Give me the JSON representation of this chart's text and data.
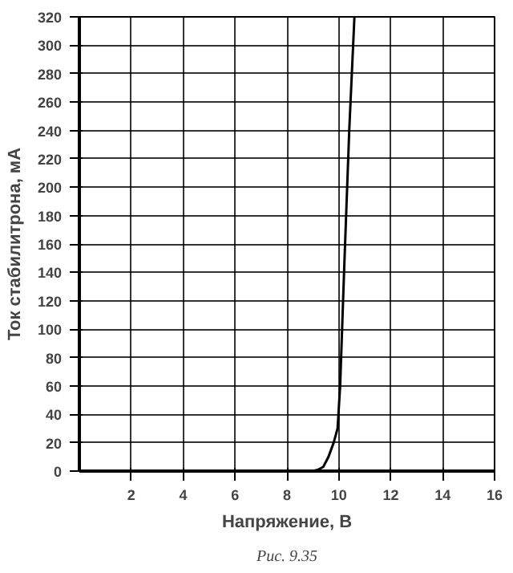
{
  "chart_data": {
    "type": "line",
    "xlabel": "Напряжение, В",
    "ylabel": "Ток стабилитрона, мА",
    "annotations": [
      "Рис. 9.35"
    ],
    "series": [
      {
        "color": "#000000",
        "x": [
          2,
          9.0,
          9.2,
          9.4,
          9.6,
          9.8,
          9.95,
          10.05,
          10.2,
          10.4,
          10.6
        ],
        "values": [
          0,
          0,
          1,
          3,
          10,
          20,
          30,
          60,
          140,
          240,
          320
        ]
      }
    ],
    "xlim": [
      0,
      16
    ],
    "xticks": [
      2,
      4,
      6,
      8,
      10,
      12,
      14,
      16
    ],
    "ylim": [
      0,
      320
    ],
    "yticks": [
      0,
      20,
      40,
      60,
      80,
      100,
      120,
      140,
      160,
      180,
      200,
      220,
      240,
      260,
      280,
      300,
      320
    ],
    "grid": true,
    "marker": "none",
    "line_style": "solid"
  }
}
